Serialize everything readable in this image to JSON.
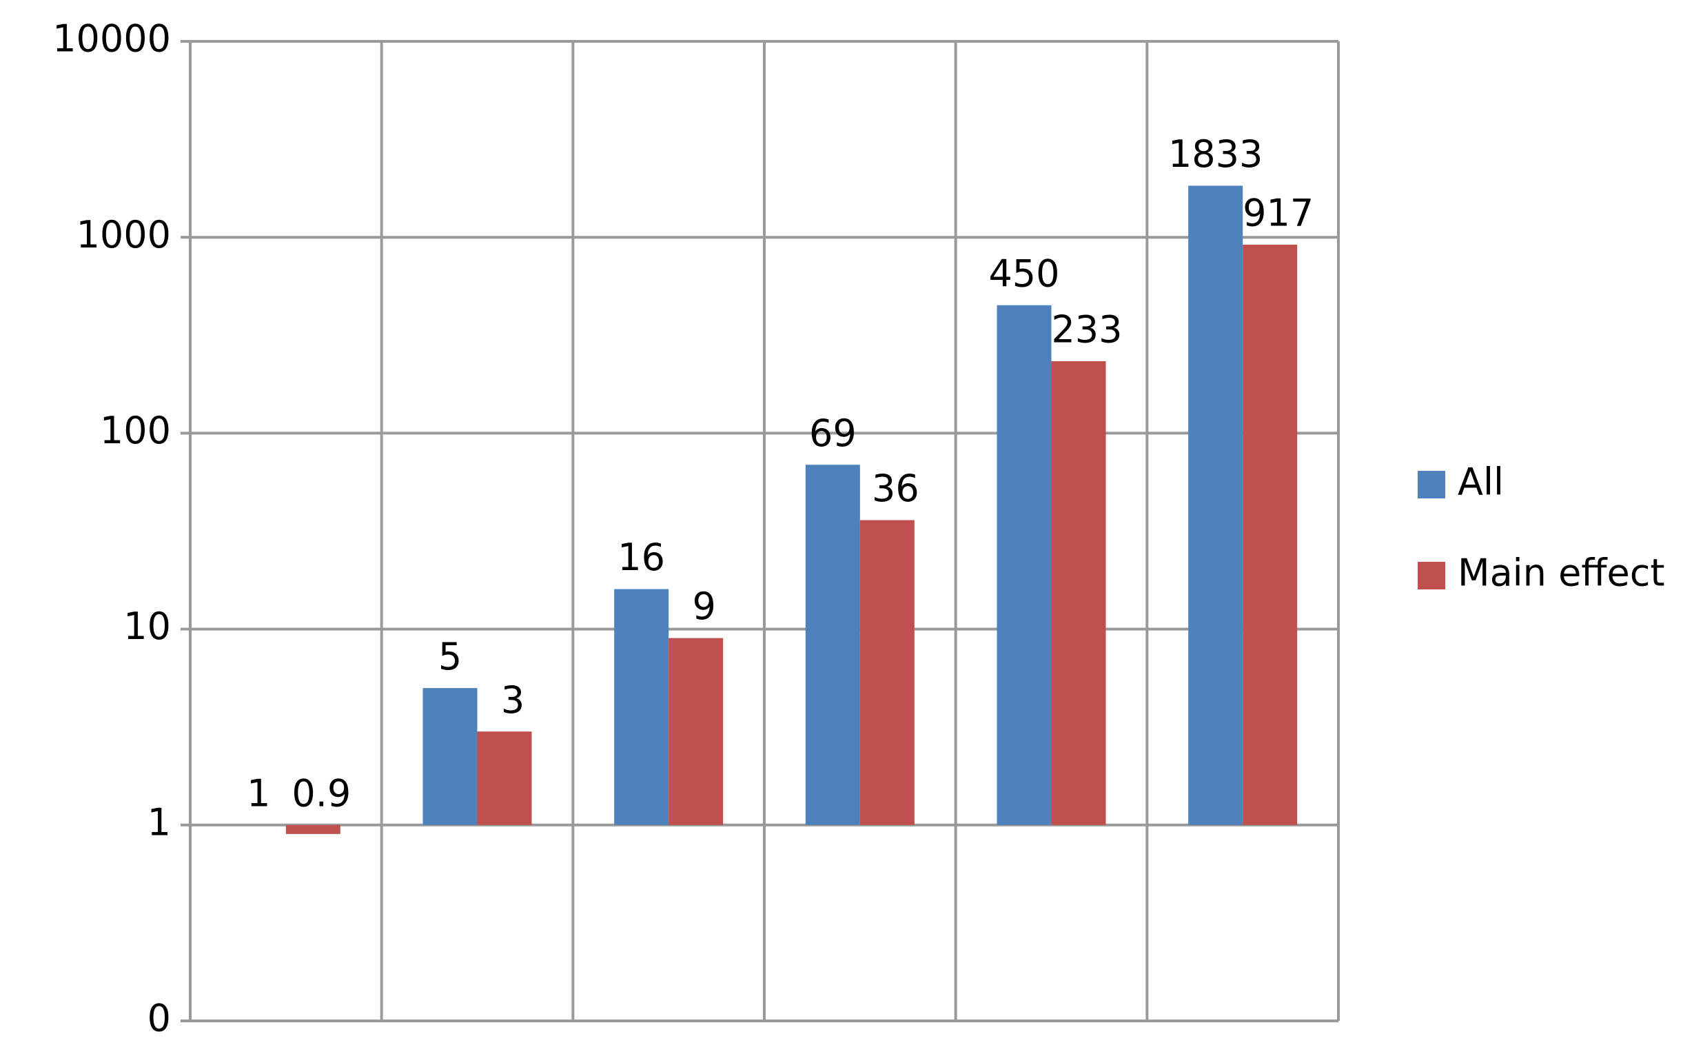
{
  "chart_data": {
    "type": "bar",
    "categories": [
      null,
      null,
      null,
      null,
      null,
      null
    ],
    "series": [
      {
        "name": "All",
        "color": "#4f81bd",
        "values": [
          1,
          5,
          16,
          69,
          450,
          1833
        ]
      },
      {
        "name": "Main effect",
        "color": "#c0504d",
        "values": [
          0.9,
          3,
          9,
          36,
          233,
          917
        ]
      }
    ],
    "log_scale": true,
    "bar_origin": 1,
    "ylim": [
      0.1,
      10000
    ],
    "yticks": [
      {
        "value": 0.1,
        "label": "0"
      },
      1,
      10,
      100,
      1000,
      10000
    ],
    "grid": true,
    "legend": "right"
  }
}
